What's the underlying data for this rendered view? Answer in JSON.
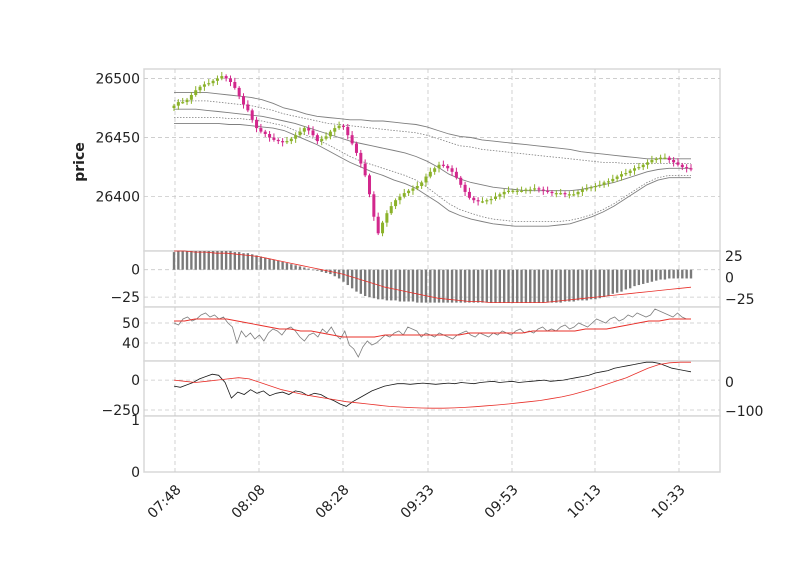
{
  "chart_data": {
    "type": "candlestick",
    "ylabel": "price",
    "x_tick_labels": [
      "07:48",
      "08:08",
      "08:28",
      "09:33",
      "09:53",
      "10:13",
      "10:33"
    ],
    "colors": {
      "up": "#8bb22a",
      "down": "#d2278c",
      "band": "#7f7f7f",
      "signal": "#e8302a",
      "line": "#1a1a1a",
      "histogram": "#7a7a7a",
      "grid": "#c8c8c8",
      "frame": "#d8d8d8"
    },
    "panels": {
      "price": {
        "ylim": [
          26354,
          26508
        ],
        "y_ticks": [
          "26500",
          "26450",
          "26400"
        ],
        "y_tick_values": [
          26500,
          26450,
          26400
        ],
        "close_path": [
          26477,
          26480,
          26480,
          26482,
          26486,
          26490,
          26493,
          26495,
          26496,
          26498,
          26500,
          26502,
          26500,
          26497,
          26492,
          26485,
          26478,
          26473,
          26465,
          26458,
          26455,
          26453,
          26450,
          26448,
          26447,
          26446,
          26447,
          26449,
          26452,
          26455,
          26458,
          26456,
          26452,
          26447,
          26449,
          26451,
          26455,
          26458,
          26460,
          26459,
          26452,
          26445,
          26437,
          26428,
          26418,
          26402,
          26383,
          26369,
          26378,
          26386,
          26392,
          26397,
          26400,
          26403,
          26405,
          26407,
          26409,
          26412,
          26417,
          26421,
          26424,
          26427,
          26426,
          26424,
          26421,
          26416,
          26410,
          26404,
          26399,
          26397,
          26396,
          26396,
          26397,
          26398,
          26400,
          26402,
          26404,
          26405,
          26405,
          26405,
          26405,
          26406,
          26406,
          26407,
          26406,
          26405,
          26404,
          26403,
          26403,
          26403,
          26402,
          26402,
          26402,
          26404,
          26406,
          26407,
          26408,
          26409,
          26410,
          26412,
          26413,
          26415,
          26417,
          26419,
          26420,
          26422,
          26424,
          26425,
          26427,
          26429,
          26431,
          26432,
          26433,
          26433,
          26431,
          26429,
          26427,
          26425,
          26424,
          26423
        ],
        "bands": {
          "upper_outer": [
            26488,
            26488,
            26488,
            26488,
            26487,
            26486,
            26485,
            26484,
            26482,
            26479,
            26475,
            26473,
            26470,
            26468,
            26467,
            26466,
            26465,
            26465,
            26464,
            26464,
            26463,
            26462,
            26461,
            26459,
            26456,
            26453,
            26451,
            26450,
            26448,
            26447,
            26446,
            26445,
            26444,
            26443,
            26442,
            26441,
            26440,
            26438,
            26437,
            26436,
            26435,
            26434,
            26433,
            26432,
            26432,
            26432,
            26432,
            26432
          ],
          "upper_inner": [
            26481,
            26481,
            26481,
            26481,
            26480,
            26479,
            26478,
            26477,
            26475,
            26473,
            26470,
            26468,
            26466,
            26464,
            26462,
            26461,
            26460,
            26459,
            26458,
            26457,
            26456,
            26455,
            26454,
            26452,
            26449,
            26446,
            26443,
            26442,
            26440,
            26439,
            26438,
            26437,
            26436,
            26435,
            26434,
            26433,
            26432,
            26431,
            26430,
            26429,
            26429,
            26428,
            26428,
            26428,
            26428,
            26428,
            26428,
            26428
          ],
          "middle": [
            26474,
            26474,
            26474,
            26473,
            26472,
            26471,
            26470,
            26469,
            26468,
            26466,
            26464,
            26462,
            26459,
            26456,
            26453,
            26450,
            26447,
            26445,
            26443,
            26441,
            26439,
            26437,
            26434,
            26430,
            26425,
            26419,
            26415,
            26412,
            26410,
            26408,
            26407,
            26406,
            26405,
            26405,
            26405,
            26405,
            26405,
            26406,
            26408,
            26410,
            26412,
            26415,
            26418,
            26421,
            26423,
            26424,
            26424,
            26424
          ],
          "lower_inner": [
            26467,
            26467,
            26467,
            26467,
            26467,
            26466,
            26466,
            26465,
            26464,
            26462,
            26460,
            26456,
            26452,
            26448,
            26444,
            26439,
            26434,
            26430,
            26427,
            26424,
            26421,
            26418,
            26414,
            26408,
            26401,
            26394,
            26389,
            26386,
            26383,
            26381,
            26380,
            26379,
            26379,
            26379,
            26379,
            26379,
            26380,
            26382,
            26385,
            26389,
            26394,
            26400,
            26406,
            26412,
            26416,
            26418,
            26418,
            26418
          ],
          "lower_outer": [
            26462,
            26462,
            26462,
            26462,
            26462,
            26461,
            26461,
            26460,
            26459,
            26458,
            26456,
            26452,
            26448,
            26444,
            26439,
            26434,
            26429,
            26425,
            26421,
            26418,
            26414,
            26411,
            26407,
            26401,
            26395,
            26388,
            26384,
            26381,
            26379,
            26377,
            26376,
            26375,
            26375,
            26375,
            26375,
            26376,
            26377,
            26380,
            26383,
            26387,
            26392,
            26398,
            26404,
            26410,
            26414,
            26416,
            26416,
            26416
          ]
        }
      },
      "macd": {
        "left_ticks": [
          "0",
          "−25"
        ],
        "left_tick_values": [
          0,
          -25
        ],
        "right_ticks": [
          "25",
          "0",
          "−25"
        ],
        "right_tick_values": [
          25,
          0,
          -25
        ],
        "ylim": [
          -34,
          17
        ],
        "histogram": [
          16,
          17,
          17,
          17,
          17,
          17,
          17,
          17,
          17,
          17,
          17,
          17,
          17,
          17,
          16,
          16,
          15,
          15,
          14,
          13,
          12,
          11,
          10,
          9,
          8,
          7,
          6,
          5,
          4,
          3,
          2,
          1,
          0,
          -1,
          -2,
          -3,
          -4,
          -6,
          -8,
          -11,
          -14,
          -17,
          -20,
          -22,
          -24,
          -25,
          -26,
          -27,
          -27,
          -28,
          -28,
          -28,
          -29,
          -29,
          -29,
          -29,
          -30,
          -30,
          -30,
          -30,
          -30,
          -30,
          -30,
          -30,
          -30,
          -30,
          -30,
          -30,
          -30,
          -30,
          -30,
          -30,
          -30,
          -30,
          -30,
          -30,
          -30,
          -30,
          -30,
          -30,
          -30,
          -30,
          -30,
          -30,
          -30,
          -30,
          -30,
          -30,
          -30,
          -30,
          -29,
          -29,
          -29,
          -28,
          -28,
          -28,
          -27,
          -27,
          -26,
          -25,
          -24,
          -22,
          -21,
          -20,
          -18,
          -17,
          -15,
          -14,
          -13,
          -12,
          -11,
          -10,
          -9,
          -9,
          -8,
          -8,
          -8,
          -8,
          -8,
          -8
        ],
        "signal": [
          17,
          17,
          16,
          16,
          15,
          15,
          14,
          13,
          12,
          10,
          8,
          6,
          4,
          2,
          0,
          -2,
          -4,
          -7,
          -10,
          -13,
          -16,
          -18,
          -20,
          -22,
          -24,
          -26,
          -27,
          -28,
          -29,
          -29,
          -30,
          -30,
          -30,
          -30,
          -30,
          -30,
          -29,
          -28,
          -27,
          -26,
          -25,
          -24,
          -23,
          -22,
          -21,
          -20,
          -19,
          -18,
          -17,
          -16
        ]
      },
      "rsi": {
        "ticks": [
          "50",
          "40"
        ],
        "tick_values": [
          50,
          40
        ],
        "ylim": [
          31,
          58
        ],
        "line": [
          50,
          49,
          52,
          53,
          51,
          52,
          54,
          55,
          53,
          54,
          52,
          53,
          50,
          48,
          40,
          46,
          43,
          45,
          42,
          44,
          41,
          45,
          47,
          46,
          44,
          47,
          48,
          46,
          43,
          41,
          44,
          45,
          43,
          47,
          45,
          48,
          44,
          42,
          46,
          39,
          37,
          33,
          38,
          41,
          39,
          40,
          42,
          44,
          43,
          45,
          46,
          44,
          48,
          47,
          46,
          43,
          45,
          44,
          43,
          45,
          44,
          43,
          42,
          44,
          45,
          46,
          44,
          43,
          45,
          44,
          43,
          45,
          44,
          46,
          45,
          44,
          46,
          47,
          45,
          46,
          45,
          47,
          48,
          46,
          47,
          46,
          48,
          49,
          47,
          48,
          50,
          49,
          48,
          50,
          52,
          51,
          50,
          52,
          53,
          51,
          52,
          54,
          53,
          55,
          54,
          53,
          54,
          57,
          56,
          55,
          54,
          53,
          55,
          53,
          52,
          52
        ],
        "signal": [
          51,
          51,
          52,
          52,
          52,
          52,
          51,
          50,
          49,
          48,
          47,
          47,
          46,
          46,
          45,
          44,
          43,
          43,
          43,
          43,
          44,
          44,
          44,
          44,
          44,
          44,
          44,
          44,
          45,
          45,
          45,
          45,
          45,
          45,
          46,
          46,
          46,
          46,
          46,
          47,
          47,
          47,
          48,
          49,
          50,
          51,
          51,
          52,
          52,
          52
        ]
      },
      "oscillator": {
        "left_ticks": [
          "0",
          "−250"
        ],
        "left_tick_values": [
          0,
          -250
        ],
        "right_ticks": [
          "0",
          "−100"
        ],
        "ylim": [
          -300,
          160
        ],
        "line": [
          -50,
          -60,
          -40,
          -20,
          10,
          30,
          50,
          40,
          -20,
          -150,
          -100,
          -120,
          -80,
          -110,
          -90,
          -130,
          -110,
          -100,
          -120,
          -90,
          -100,
          -130,
          -110,
          -120,
          -150,
          -170,
          -200,
          -220,
          -180,
          -150,
          -120,
          -90,
          -70,
          -50,
          -40,
          -30,
          -30,
          -35,
          -30,
          -25,
          -30,
          -35,
          -30,
          -25,
          -30,
          -20,
          -25,
          -30,
          -20,
          -15,
          -10,
          -20,
          -15,
          -10,
          -20,
          -15,
          -10,
          -5,
          0,
          -10,
          -5,
          0,
          10,
          20,
          30,
          40,
          60,
          70,
          80,
          100,
          110,
          120,
          130,
          140,
          150,
          150,
          140,
          120,
          100,
          90,
          80,
          70
        ],
        "signal": [
          0,
          -10,
          -20,
          -10,
          0,
          10,
          20,
          10,
          -20,
          -50,
          -80,
          -100,
          -120,
          -135,
          -150,
          -165,
          -180,
          -190,
          -200,
          -210,
          -220,
          -225,
          -230,
          -233,
          -235,
          -235,
          -232,
          -228,
          -222,
          -215,
          -208,
          -200,
          -190,
          -180,
          -170,
          -155,
          -140,
          -120,
          -95,
          -70,
          -40,
          -10,
          20,
          60,
          100,
          130,
          145,
          150,
          150
        ]
      },
      "bottom": {
        "ticks": [
          "1",
          "0"
        ],
        "tick_values": [
          1,
          0
        ]
      }
    }
  }
}
